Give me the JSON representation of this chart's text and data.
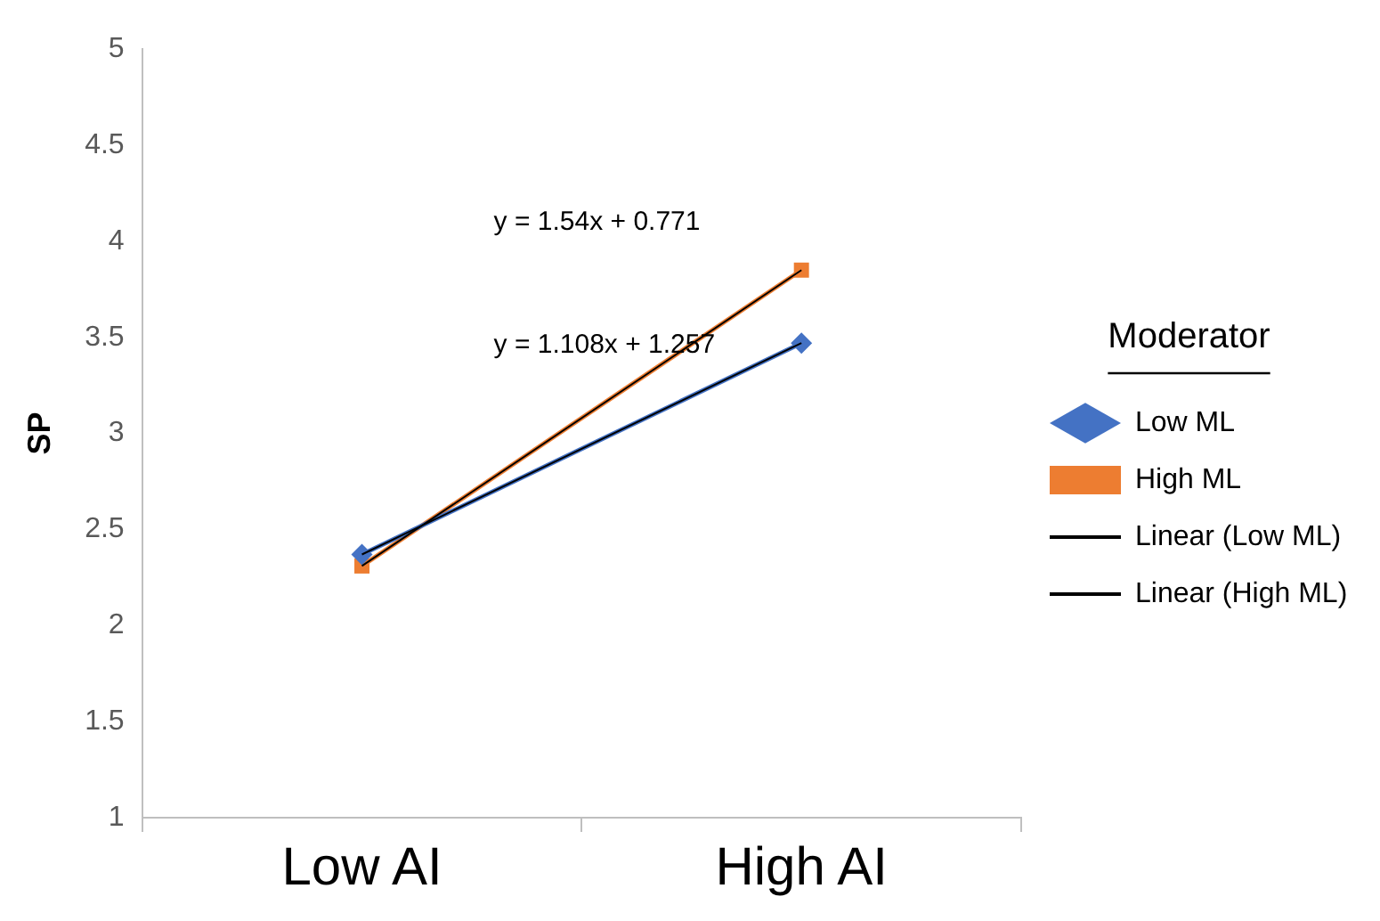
{
  "chart_data": {
    "type": "line",
    "ylabel": "SP",
    "legend_title": "Moderator",
    "categories": [
      "Low AI",
      "High AI"
    ],
    "series": [
      {
        "name": "Low ML",
        "color": "#4472c4",
        "values": [
          2.37,
          3.47
        ],
        "marker": "diamond"
      },
      {
        "name": "High ML",
        "color": "#ed7d31",
        "values": [
          2.31,
          3.85
        ],
        "marker": "square"
      },
      {
        "name": "Linear (Low ML)",
        "color": "#000000",
        "values": [
          2.37,
          3.47
        ],
        "marker": "none"
      },
      {
        "name": "Linear (High ML)",
        "color": "#000000",
        "values": [
          2.31,
          3.85
        ],
        "marker": "none"
      }
    ],
    "annotations": [
      "y = 1.54x + 0.771",
      "y = 1.108x + 1.257"
    ],
    "ylim": [
      1,
      5
    ],
    "yticks": [
      1,
      1.5,
      2,
      2.5,
      3,
      3.5,
      4,
      4.5,
      5
    ],
    "grid": false,
    "legend": "right",
    "line_style": "solid"
  }
}
